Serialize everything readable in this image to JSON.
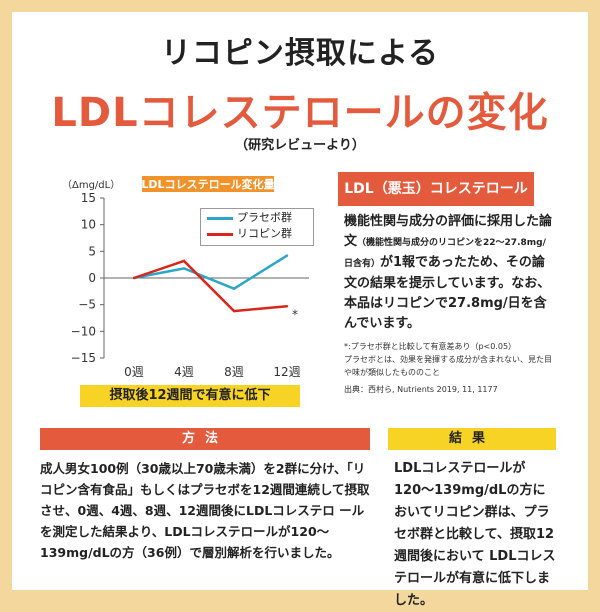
{
  "header": {
    "title_line1": "リコピン摂取による",
    "title_line2": "LDLコレステロールの変化",
    "subtitle": "（研究レビューより）"
  },
  "chart_data": {
    "type": "line",
    "title": "LDLコレステロール変化量",
    "ylabel": "（Δmg/dL）",
    "categories": [
      "0週",
      "4週",
      "8週",
      "12週"
    ],
    "ylim": [
      -15,
      15
    ],
    "yticks": [
      15,
      10,
      5,
      0,
      -5,
      -10,
      -15
    ],
    "grid": false,
    "legend_position": "top-right",
    "series": [
      {
        "name": "プラセボ群",
        "color": "#2aa7c7",
        "values": [
          0,
          1.8,
          -2,
          4.2
        ]
      },
      {
        "name": "リコピン群",
        "color": "#d9261c",
        "values": [
          0,
          3.2,
          -6.2,
          -5.3
        ]
      }
    ],
    "annotation": "*"
  },
  "conclusion": "摂取後12週間で有意に低下",
  "ldl_box": {
    "header": "LDL（悪玉）コレステロール",
    "line1": "機能性関与成分の評価に採用した論文",
    "line1_small": "（機能性関与成分のリコピンを22〜27.8mg/日含有）",
    "line2": "が1報であったため、その論文の結果を提示しています。なお、本品はリコピンで27.8mg/日を含んでいます。"
  },
  "footnotes": {
    "note1": "*:プラセボ群と比較して有意差あり（p<0.05）",
    "note2": "プラセボとは、効果を発揮する成分が含まれない、見た目や味が類似したもののこと",
    "source": "出典：西村ら, Nutrients 2019, 11, 1177"
  },
  "method": {
    "header": "方法",
    "body": "成人男女100例（30歳以上70歳未満）を2群に分け、「リコピン含有食品」もしくはプラセボを12週間連続して摂取させ、0週、4週、8週、12週間後にLDLコレステロ ールを測定した結果より、LDLコレステロールが120〜139mg/dLの方（36例）で層別解析を行いました。"
  },
  "result": {
    "header": "結果",
    "body": "LDLコレステロールが120〜139mg/dLの方においてリコピン群は、プラセボ群と比較して、摂取12週間後において LDLコレステロールが有意に低下しました。"
  }
}
